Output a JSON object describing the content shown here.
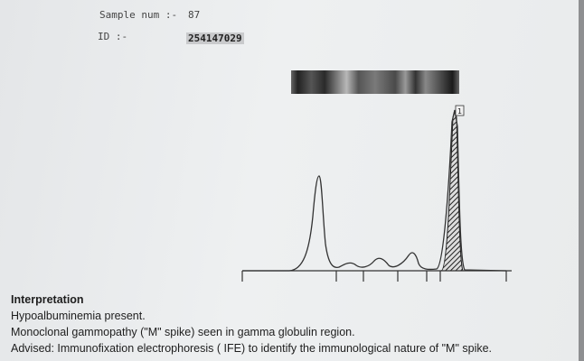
{
  "header": {
    "sample_label": "Sample num :-",
    "sample_value": "87",
    "id_label": "ID :-",
    "id_value": "254147029"
  },
  "graph": {
    "peak_marker": "1"
  },
  "interpretation": {
    "title": "Interpretation",
    "lines": [
      "Hypoalbuminemia present.",
      "Monoclonal gammopathy (\"M\" spike) seen in gamma globulin region.",
      "Advised: Immunofixation electrophoresis ( IFE) to identify the immunological nature of \"M\" spike."
    ]
  }
}
